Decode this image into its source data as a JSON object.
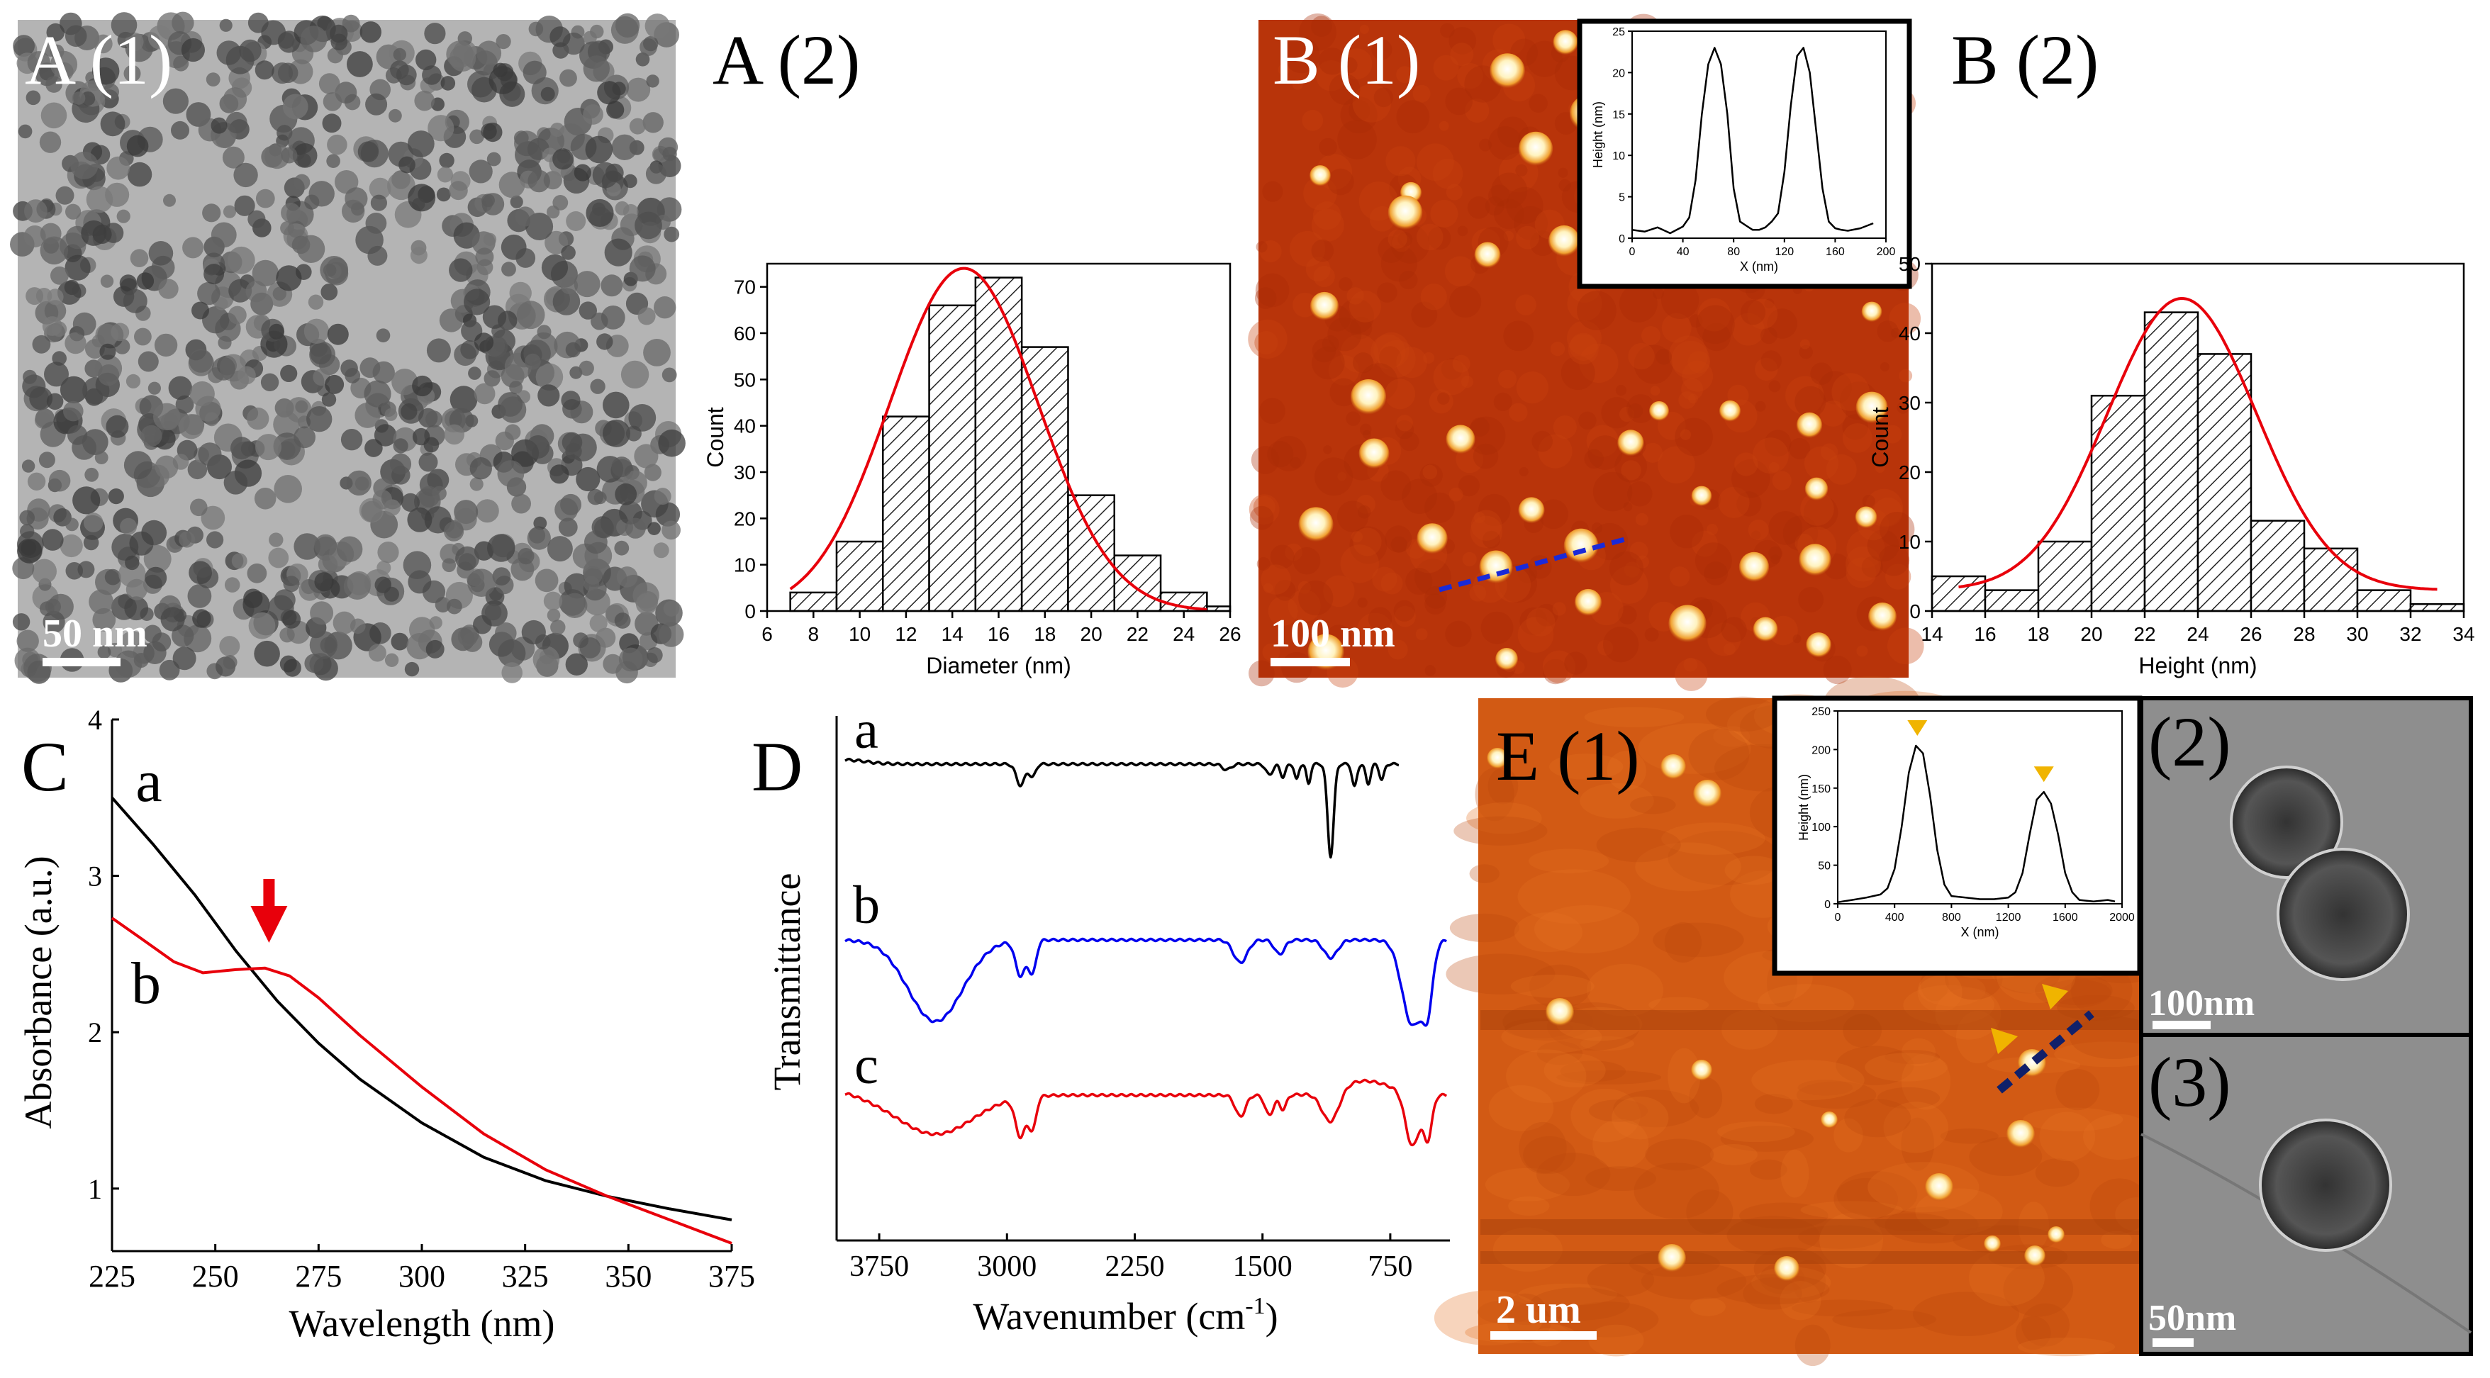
{
  "panels": {
    "a1": {
      "label": "A (1)",
      "scale_bar": "50 nm"
    },
    "a2": {
      "label": "A (2)"
    },
    "b1": {
      "label": "B (1)",
      "scale_bar": "100 nm"
    },
    "b2": {
      "label": "B (2)"
    },
    "c": {
      "label": "C"
    },
    "d": {
      "label": "D"
    },
    "e1": {
      "label": "E (1)",
      "scale_bar": "2 um"
    },
    "e2": {
      "label": "(2)",
      "scale_bar": "100nm"
    },
    "e3": {
      "label": "(3)",
      "scale_bar": "50nm"
    }
  },
  "colors": {
    "fit_red": "#e8000b",
    "afm_dark": "#a52800",
    "afm_light": "#d85a10",
    "blue_trace": "#0000ee"
  },
  "chart_data": [
    {
      "id": "a2",
      "type": "bar",
      "title": "",
      "xlabel": "Diameter (nm)",
      "ylabel": "Count",
      "xlim": [
        6,
        26
      ],
      "ylim": [
        0,
        75
      ],
      "xticks": [
        "6",
        "8",
        "10",
        "12",
        "14",
        "16",
        "18",
        "20",
        "22",
        "24",
        "26"
      ],
      "yticks": [
        "0",
        "10",
        "20",
        "30",
        "40",
        "50",
        "60",
        "70"
      ],
      "bin_edges": [
        6,
        8,
        10,
        12,
        14,
        16,
        18,
        20,
        22,
        24,
        26
      ],
      "bins": [
        [
          7,
          9,
          4
        ],
        [
          9,
          11,
          15
        ],
        [
          11,
          13,
          42
        ],
        [
          13,
          15,
          66
        ],
        [
          15,
          17,
          72
        ],
        [
          17,
          19,
          57
        ],
        [
          19,
          21,
          25
        ],
        [
          21,
          23,
          12
        ],
        [
          23,
          25,
          4
        ],
        [
          25,
          26,
          1
        ]
      ],
      "fit": {
        "type": "gaussian",
        "mean": 14.5,
        "sigma": 3.2,
        "peak": 74,
        "color": "#e8000b"
      }
    },
    {
      "id": "b2",
      "type": "bar",
      "title": "",
      "xlabel": "Height (nm)",
      "ylabel": "Count",
      "xlim": [
        14,
        34
      ],
      "ylim": [
        0,
        50
      ],
      "xticks": [
        "14",
        "16",
        "18",
        "20",
        "22",
        "24",
        "26",
        "28",
        "30",
        "32",
        "34"
      ],
      "yticks": [
        "0",
        "10",
        "20",
        "30",
        "40",
        "50"
      ],
      "bins": [
        [
          14,
          16,
          5
        ],
        [
          16,
          18,
          3
        ],
        [
          18,
          20,
          10
        ],
        [
          20,
          22,
          31
        ],
        [
          22,
          24,
          43
        ],
        [
          24,
          26,
          37
        ],
        [
          26,
          28,
          13
        ],
        [
          28,
          30,
          9
        ],
        [
          30,
          32,
          3
        ],
        [
          32,
          34,
          1
        ]
      ],
      "fit": {
        "type": "gaussian",
        "mean": 23.4,
        "sigma": 2.8,
        "peak": 45,
        "baseline": 3,
        "color": "#e8000b"
      }
    },
    {
      "id": "b1_inset",
      "type": "line",
      "xlabel": "X (nm)",
      "ylabel": "Height (nm)",
      "xlim": [
        0,
        200
      ],
      "ylim": [
        0,
        25
      ],
      "xticks": [
        "0",
        "40",
        "80",
        "120",
        "160",
        "200"
      ],
      "yticks": [
        "0",
        "5",
        "10",
        "15",
        "20",
        "25"
      ],
      "x": [
        0,
        10,
        20,
        30,
        40,
        45,
        50,
        55,
        60,
        65,
        70,
        75,
        80,
        85,
        90,
        95,
        100,
        105,
        110,
        115,
        120,
        125,
        130,
        135,
        140,
        145,
        150,
        155,
        160,
        165,
        170,
        180,
        190
      ],
      "y": [
        1.0,
        0.8,
        1.3,
        0.6,
        1.4,
        2.5,
        7,
        15,
        21,
        23,
        21,
        15,
        6,
        2,
        1.5,
        1.0,
        1.0,
        1.3,
        2,
        3,
        8,
        16,
        22,
        23,
        20,
        13,
        6,
        2,
        1.2,
        1.0,
        0.9,
        1.2,
        1.8
      ]
    },
    {
      "id": "e1_inset",
      "type": "line",
      "xlabel": "X (nm)",
      "ylabel": "Height (nm)",
      "xlim": [
        0,
        2000
      ],
      "ylim": [
        0,
        250
      ],
      "xticks": [
        "0",
        "400",
        "800",
        "1200",
        "1600",
        "2000"
      ],
      "yticks": [
        "0",
        "50",
        "100",
        "150",
        "200",
        "250"
      ],
      "x": [
        0,
        100,
        200,
        300,
        350,
        400,
        450,
        500,
        550,
        600,
        650,
        700,
        750,
        800,
        900,
        1000,
        1100,
        1200,
        1250,
        1300,
        1350,
        1400,
        1450,
        1500,
        1550,
        1600,
        1650,
        1700,
        1800,
        1900,
        1950
      ],
      "y": [
        2,
        5,
        8,
        12,
        20,
        45,
        100,
        170,
        205,
        195,
        140,
        70,
        25,
        10,
        8,
        6,
        6,
        8,
        15,
        40,
        90,
        135,
        145,
        130,
        90,
        40,
        15,
        5,
        3,
        5,
        3
      ],
      "markers": [
        {
          "x": 560,
          "y": 205
        },
        {
          "x": 1450,
          "y": 145
        }
      ]
    },
    {
      "id": "c",
      "type": "line",
      "xlabel": "Wavelength (nm)",
      "ylabel": "Absorbance (a.u.)",
      "xlim": [
        225,
        375
      ],
      "ylim": [
        0.6,
        4
      ],
      "xticks": [
        "225",
        "250",
        "275",
        "300",
        "325",
        "350",
        "375"
      ],
      "yticks": [
        "1",
        "2",
        "3",
        "4"
      ],
      "series": [
        {
          "name": "a",
          "color": "#000000",
          "x": [
            225,
            235,
            245,
            255,
            265,
            275,
            285,
            300,
            315,
            330,
            345,
            360,
            375
          ],
          "y": [
            3.5,
            3.2,
            2.88,
            2.52,
            2.2,
            1.93,
            1.7,
            1.42,
            1.2,
            1.05,
            0.95,
            0.87,
            0.8
          ]
        },
        {
          "name": "b",
          "color": "#e8000b",
          "x": [
            225,
            232,
            240,
            247,
            255,
            262,
            268,
            275,
            285,
            300,
            315,
            330,
            345,
            360,
            375
          ],
          "y": [
            2.73,
            2.6,
            2.45,
            2.38,
            2.4,
            2.41,
            2.36,
            2.22,
            1.98,
            1.65,
            1.35,
            1.12,
            0.95,
            0.8,
            0.65
          ]
        }
      ],
      "annotation": {
        "type": "arrow",
        "x": 263,
        "color": "#e8000b"
      }
    },
    {
      "id": "d",
      "type": "line",
      "xlabel": "Wavenumber (cm-1)",
      "ylabel": "Transmittance",
      "xlim": [
        4000,
        400
      ],
      "xticks": [
        "3750",
        "3000",
        "2250",
        "1500",
        "750"
      ],
      "series": [
        {
          "name": "a",
          "color": "#000000"
        },
        {
          "name": "b",
          "color": "#0000ee"
        },
        {
          "name": "c",
          "color": "#e8000b"
        }
      ]
    }
  ]
}
